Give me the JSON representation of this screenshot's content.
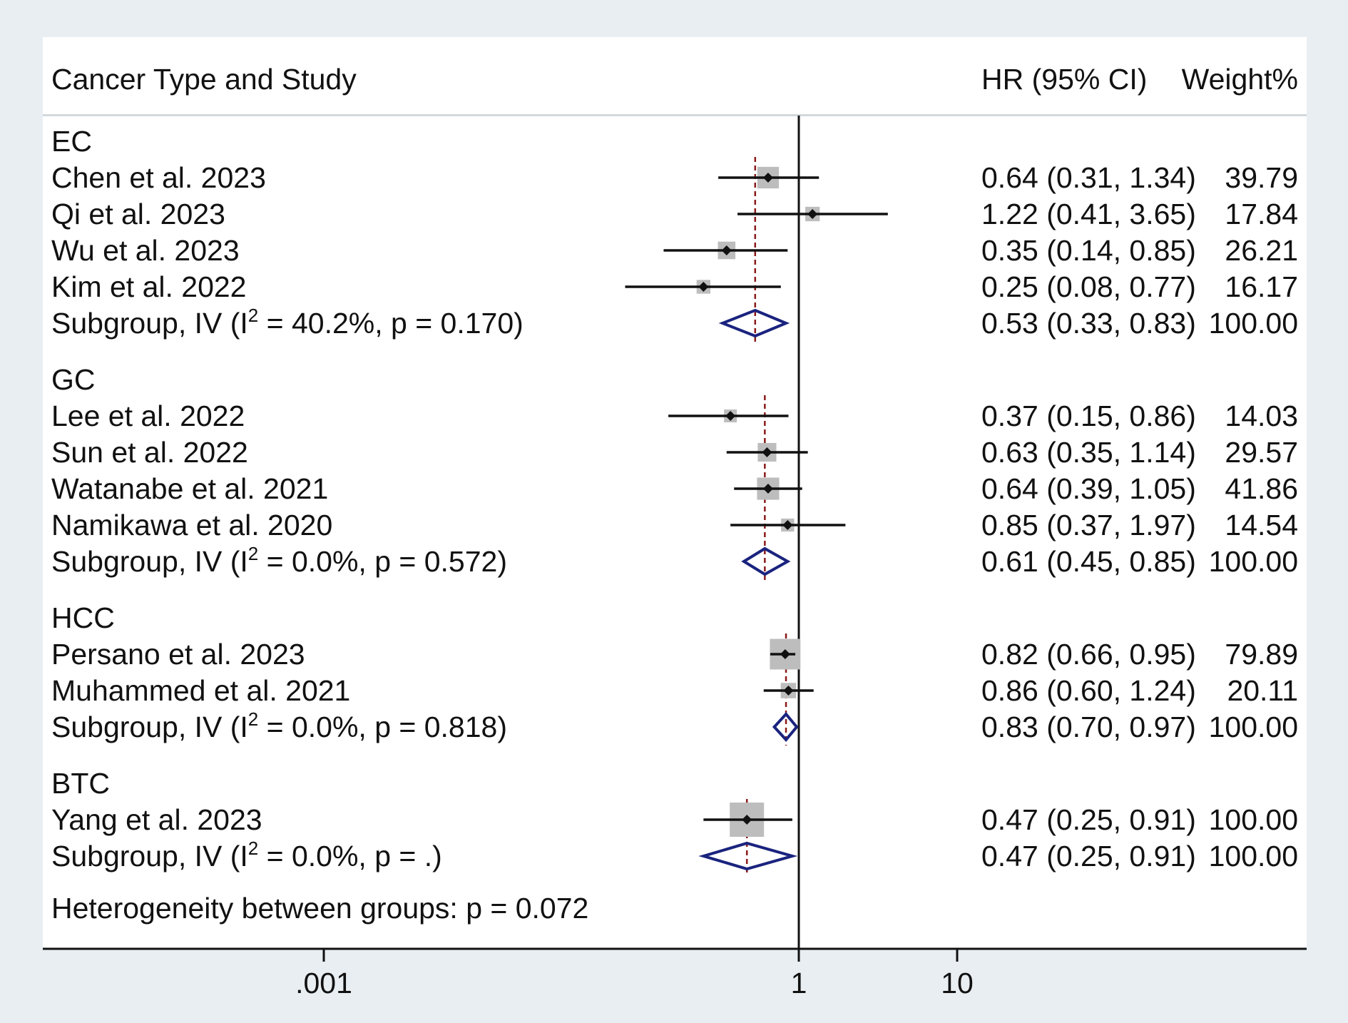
{
  "chart_data": {
    "type": "forest",
    "header": {
      "left": "Cancer Type and Study",
      "hr": "HR (95% CI)",
      "weight": "Weight%"
    },
    "x_scale": "log",
    "x_ticks": [
      {
        "value": 0.001,
        "label": ".001"
      },
      {
        "value": 1,
        "label": "1"
      },
      {
        "value": 10,
        "label": "10"
      }
    ],
    "reference_line": 1,
    "groups": [
      {
        "name": "EC",
        "studies": [
          {
            "label": "Chen et al. 2023",
            "hr": 0.64,
            "lo": 0.31,
            "hi": 1.34,
            "ci_text": "0.64 (0.31, 1.34)",
            "weight": "39.79"
          },
          {
            "label": "Qi et al. 2023",
            "hr": 1.22,
            "lo": 0.41,
            "hi": 3.65,
            "ci_text": "1.22 (0.41, 3.65)",
            "weight": "17.84"
          },
          {
            "label": "Wu et al. 2023",
            "hr": 0.35,
            "lo": 0.14,
            "hi": 0.85,
            "ci_text": "0.35 (0.14, 0.85)",
            "weight": "26.21"
          },
          {
            "label": "Kim et al. 2022",
            "hr": 0.25,
            "lo": 0.08,
            "hi": 0.77,
            "ci_text": "0.25 (0.08, 0.77)",
            "weight": "16.17"
          }
        ],
        "subgroup": {
          "prefix": "Subgroup, IV (I",
          "sup": "2",
          "suffix": " = 40.2%, p = 0.170)",
          "hr": 0.53,
          "lo": 0.33,
          "hi": 0.83,
          "ci_text": "0.53 (0.33, 0.83)",
          "weight": "100.00"
        }
      },
      {
        "name": "GC",
        "studies": [
          {
            "label": "Lee et al. 2022",
            "hr": 0.37,
            "lo": 0.15,
            "hi": 0.86,
            "ci_text": "0.37 (0.15, 0.86)",
            "weight": "14.03"
          },
          {
            "label": "Sun et al. 2022",
            "hr": 0.63,
            "lo": 0.35,
            "hi": 1.14,
            "ci_text": "0.63 (0.35, 1.14)",
            "weight": "29.57"
          },
          {
            "label": "Watanabe et al. 2021",
            "hr": 0.64,
            "lo": 0.39,
            "hi": 1.05,
            "ci_text": "0.64 (0.39, 1.05)",
            "weight": "41.86"
          },
          {
            "label": "Namikawa et al. 2020",
            "hr": 0.85,
            "lo": 0.37,
            "hi": 1.97,
            "ci_text": "0.85 (0.37, 1.97)",
            "weight": "14.54"
          }
        ],
        "subgroup": {
          "prefix": "Subgroup, IV (I",
          "sup": "2",
          "suffix": " = 0.0%, p = 0.572)",
          "hr": 0.61,
          "lo": 0.45,
          "hi": 0.85,
          "ci_text": "0.61 (0.45, 0.85)",
          "weight": "100.00"
        }
      },
      {
        "name": "HCC",
        "studies": [
          {
            "label": "Persano et al. 2023",
            "hr": 0.82,
            "lo": 0.66,
            "hi": 0.95,
            "ci_text": "0.82 (0.66, 0.95)",
            "weight": "79.89"
          },
          {
            "label": "Muhammed et al. 2021",
            "hr": 0.86,
            "lo": 0.6,
            "hi": 1.24,
            "ci_text": "0.86 (0.60, 1.24)",
            "weight": "20.11"
          }
        ],
        "subgroup": {
          "prefix": "Subgroup, IV (I",
          "sup": "2",
          "suffix": " = 0.0%, p = 0.818)",
          "hr": 0.83,
          "lo": 0.7,
          "hi": 0.97,
          "ci_text": "0.83 (0.70, 0.97)",
          "weight": "100.00"
        }
      },
      {
        "name": "BTC",
        "studies": [
          {
            "label": "Yang et al. 2023",
            "hr": 0.47,
            "lo": 0.25,
            "hi": 0.91,
            "ci_text": "0.47 (0.25, 0.91)",
            "weight": "100.00"
          }
        ],
        "subgroup": {
          "prefix": "Subgroup, IV (I",
          "sup": "2",
          "suffix": " = 0.0%, p = .)",
          "hr": 0.47,
          "lo": 0.25,
          "hi": 0.91,
          "ci_text": "0.47 (0.25, 0.91)",
          "weight": "100.00"
        }
      }
    ],
    "footer": "Heterogeneity between groups: p = 0.072",
    "colors": {
      "panel": "#ffffff",
      "background": "#e9eef2",
      "marker_box": "#bdbdbd",
      "diamond": "#1a237e",
      "subgroup_line": "#8b1a1a",
      "ink": "#111111"
    }
  }
}
